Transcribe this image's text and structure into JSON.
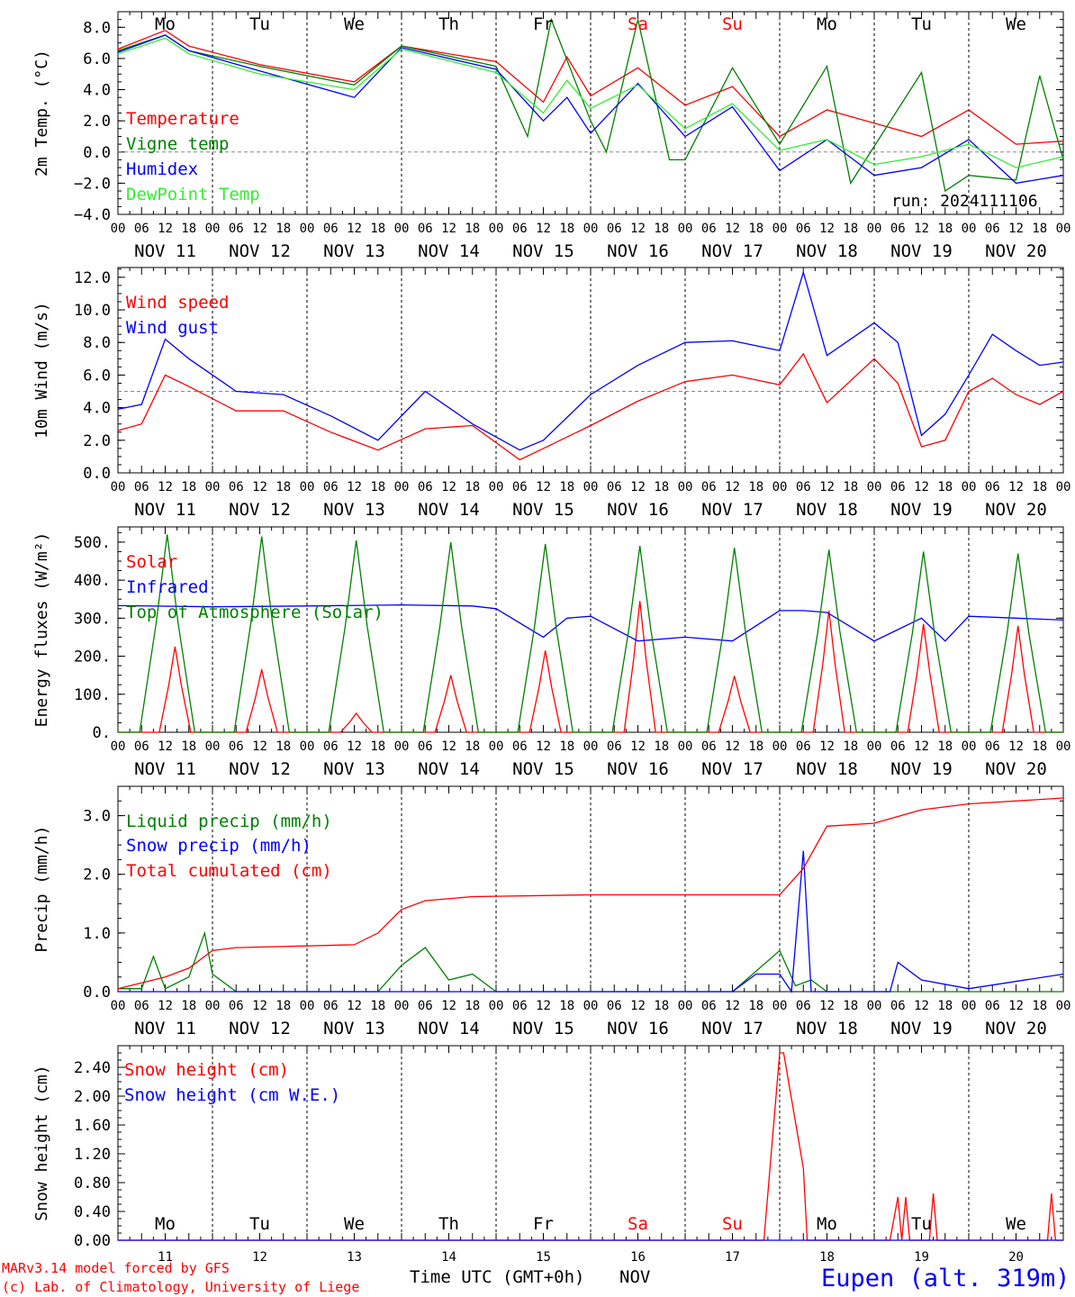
{
  "colors": {
    "red": "#ff0000",
    "green": "#008000",
    "blue": "#0000ff",
    "lightgreen": "#33ee33",
    "axis": "#000000"
  },
  "x_axis": {
    "hour_ticks": [
      "00",
      "06",
      "12",
      "18"
    ],
    "final_tick": "00",
    "date_labels": [
      "NOV 11",
      "NOV 12",
      "NOV 13",
      "NOV 14",
      "NOV 15",
      "NOV 16",
      "NOV 17",
      "NOV 18",
      "NOV 19",
      "NOV 20"
    ],
    "weekdays": [
      "Mo",
      "Tu",
      "We",
      "Th",
      "Fr",
      "Sa",
      "Su",
      "Mo",
      "Tu",
      "We"
    ],
    "weekend_flags": [
      false,
      false,
      false,
      false,
      false,
      true,
      true,
      false,
      false,
      false
    ],
    "day_numbers": [
      "11",
      "12",
      "13",
      "14",
      "15",
      "16",
      "17",
      "18",
      "19",
      "20"
    ],
    "xlabel": "Time UTC (GMT+0h)",
    "month": "NOV"
  },
  "footer": {
    "model_line": "MARv3.14 model forced by GFS",
    "copyright_line": "(c) Lab. of Climatology, University of Liege",
    "station": "Eupen (alt. 319m)"
  },
  "chart_data": [
    {
      "id": "temp",
      "type": "line",
      "ylabel": "2m Temp. (°C)",
      "ylim": [
        -4,
        9
      ],
      "yticks": [
        "8.0",
        "6.0",
        "4.0",
        "2.0",
        "0.0",
        "−2.0",
        "−4.0"
      ],
      "ytick_values": [
        8,
        6,
        4,
        2,
        0,
        -2,
        -4
      ],
      "reference_line": 0,
      "run_label": "run: 2024111106",
      "series": [
        {
          "name": "Temperature",
          "color": "red",
          "x": [
            0,
            12,
            18,
            36,
            60,
            72,
            96,
            108,
            114,
            120,
            132,
            144,
            156,
            168,
            180,
            204,
            216,
            228,
            240
          ],
          "y": [
            6.6,
            7.8,
            6.8,
            5.6,
            4.5,
            6.8,
            5.8,
            3.2,
            6.1,
            3.6,
            5.4,
            3.0,
            4.2,
            1.0,
            2.7,
            1.0,
            2.7,
            0.5,
            0.7
          ]
        },
        {
          "name": "Vigne temp",
          "color": "green",
          "x": [
            0,
            12,
            18,
            36,
            60,
            72,
            96,
            104,
            110,
            120,
            124,
            132,
            140,
            144,
            156,
            168,
            180,
            186,
            204,
            210,
            216,
            228,
            234,
            240
          ],
          "y": [
            6.5,
            7.5,
            6.5,
            5.5,
            4.3,
            6.8,
            5.5,
            1.0,
            8.5,
            2.0,
            0.0,
            8.5,
            -0.5,
            -0.5,
            5.4,
            0.5,
            5.5,
            -2.0,
            5.1,
            -2.5,
            -1.5,
            -1.8,
            4.9,
            -0.5
          ]
        },
        {
          "name": "Humidex",
          "color": "blue",
          "x": [
            0,
            12,
            18,
            36,
            60,
            72,
            96,
            108,
            114,
            120,
            132,
            144,
            156,
            168,
            180,
            192,
            204,
            216,
            228,
            240
          ],
          "y": [
            6.4,
            7.5,
            6.5,
            5.2,
            3.5,
            6.7,
            5.3,
            2.0,
            3.5,
            1.2,
            4.4,
            1.0,
            2.9,
            -1.2,
            0.8,
            -1.5,
            -1.0,
            0.8,
            -2.0,
            -1.5
          ]
        },
        {
          "name": "DewPoint Temp",
          "color": "lightgreen",
          "x": [
            0,
            12,
            18,
            36,
            60,
            72,
            96,
            108,
            114,
            120,
            132,
            144,
            156,
            168,
            180,
            192,
            204,
            216,
            228,
            240
          ],
          "y": [
            6.3,
            7.3,
            6.3,
            5.0,
            4.0,
            6.6,
            5.1,
            2.5,
            4.6,
            2.8,
            4.3,
            1.5,
            3.1,
            0.1,
            0.8,
            -0.8,
            -0.3,
            0.5,
            -1.0,
            -0.3
          ]
        }
      ]
    },
    {
      "id": "wind",
      "type": "line",
      "ylabel": "10m Wind (m/s)",
      "ylim": [
        0,
        12.6
      ],
      "yticks": [
        "12.0",
        "10.0",
        "8.0",
        "6.0",
        "4.0",
        "2.0",
        "0.0"
      ],
      "ytick_values": [
        12,
        10,
        8,
        6,
        4,
        2,
        0
      ],
      "reference_line": 5,
      "series": [
        {
          "name": "Wind speed",
          "color": "red",
          "x": [
            0,
            6,
            12,
            18,
            30,
            42,
            54,
            66,
            78,
            90,
            102,
            108,
            120,
            132,
            144,
            156,
            168,
            174,
            180,
            192,
            198,
            204,
            210,
            216,
            222,
            228,
            234,
            240
          ],
          "y": [
            2.6,
            3.0,
            6.0,
            5.3,
            3.8,
            3.8,
            2.5,
            1.4,
            2.7,
            2.9,
            0.8,
            1.5,
            2.9,
            4.4,
            5.6,
            6.0,
            5.4,
            7.3,
            4.3,
            7.0,
            5.5,
            1.6,
            2.0,
            5.0,
            5.8,
            4.8,
            4.2,
            5.0
          ]
        },
        {
          "name": "Wind gust",
          "color": "blue",
          "x": [
            0,
            6,
            12,
            18,
            30,
            42,
            54,
            66,
            78,
            90,
            102,
            108,
            120,
            132,
            144,
            156,
            168,
            174,
            180,
            192,
            198,
            204,
            210,
            216,
            222,
            228,
            234,
            240
          ],
          "y": [
            3.9,
            4.2,
            8.2,
            7.0,
            5.0,
            4.8,
            3.5,
            2.0,
            5.0,
            3.0,
            1.4,
            2.0,
            4.8,
            6.6,
            8.0,
            8.1,
            7.5,
            12.3,
            7.2,
            9.2,
            8.0,
            2.3,
            3.6,
            6.0,
            8.5,
            7.5,
            6.6,
            6.8
          ]
        }
      ]
    },
    {
      "id": "energy",
      "type": "line",
      "ylabel": "Energy fluxes (W/m²)",
      "ylim": [
        0,
        540
      ],
      "yticks": [
        "500.",
        "400.",
        "300.",
        "200.",
        "100.",
        "0."
      ],
      "ytick_values": [
        500,
        400,
        300,
        200,
        100,
        0
      ],
      "series": [
        {
          "name": "Solar",
          "color": "red",
          "peaks": [
            [
              14.5,
              225
            ],
            [
              36.5,
              165
            ],
            [
              60.5,
              50
            ],
            [
              84.5,
              150
            ],
            [
              108.5,
              215
            ],
            [
              132.5,
              345
            ],
            [
              156.5,
              148
            ],
            [
              180.5,
              320
            ],
            [
              204.5,
              285
            ],
            [
              228.5,
              280
            ]
          ]
        },
        {
          "name": "Infrared",
          "color": "blue",
          "x": [
            0,
            24,
            48,
            72,
            90,
            96,
            108,
            114,
            120,
            132,
            144,
            156,
            168,
            174,
            180,
            192,
            198,
            204,
            210,
            216,
            228,
            240
          ],
          "y": [
            333,
            330,
            332,
            335,
            332,
            325,
            250,
            300,
            305,
            240,
            250,
            240,
            320,
            320,
            315,
            240,
            270,
            300,
            240,
            305,
            300,
            295
          ]
        },
        {
          "name": "Top of Atmosphere (Solar)",
          "color": "green",
          "peaks": [
            [
              12.5,
              520
            ],
            [
              36.5,
              515
            ],
            [
              60.5,
              505
            ],
            [
              84.5,
              500
            ],
            [
              108.5,
              495
            ],
            [
              132.5,
              490
            ],
            [
              156.5,
              485
            ],
            [
              180.5,
              480
            ],
            [
              204.5,
              475
            ],
            [
              228.5,
              470
            ]
          ]
        }
      ]
    },
    {
      "id": "precip",
      "type": "line",
      "ylabel": "Precip (mm/h)",
      "ylim": [
        0,
        3.5
      ],
      "yticks": [
        "3.0",
        "2.0",
        "1.0",
        "0.0"
      ],
      "ytick_values": [
        3,
        2,
        1,
        0
      ],
      "series": [
        {
          "name": "Liquid precip (mm/h)",
          "color": "green",
          "x": [
            0,
            6,
            9,
            12,
            18,
            22,
            24,
            30,
            66,
            72,
            78,
            84,
            90,
            96,
            156,
            162,
            168,
            172,
            176,
            180,
            240
          ],
          "y": [
            0.05,
            0.05,
            0.6,
            0.05,
            0.25,
            1.0,
            0.3,
            0.0,
            0.0,
            0.45,
            0.75,
            0.2,
            0.3,
            0.0,
            0.0,
            0.35,
            0.7,
            0.1,
            0.2,
            0.0,
            0.0
          ]
        },
        {
          "name": "Snow precip (mm/h)",
          "color": "blue",
          "x": [
            0,
            156,
            162,
            168,
            171,
            174,
            176,
            180,
            196,
            198,
            204,
            216,
            240
          ],
          "y": [
            0,
            0,
            0.3,
            0.3,
            0.0,
            2.4,
            0.0,
            0.0,
            0.0,
            0.5,
            0.2,
            0.05,
            0.3
          ]
        },
        {
          "name": "Total cumulated (cm)",
          "color": "red",
          "x": [
            0,
            12,
            18,
            24,
            30,
            60,
            66,
            72,
            78,
            90,
            120,
            168,
            174,
            180,
            192,
            204,
            216,
            240
          ],
          "y": [
            0.05,
            0.25,
            0.4,
            0.7,
            0.75,
            0.8,
            1.0,
            1.4,
            1.55,
            1.62,
            1.65,
            1.65,
            2.1,
            2.82,
            2.87,
            3.1,
            3.2,
            3.3
          ]
        }
      ]
    },
    {
      "id": "snow",
      "type": "line",
      "ylabel": "Snow height (cm)",
      "ylim": [
        0,
        2.7
      ],
      "yticks": [
        "2.40",
        "2.00",
        "1.60",
        "1.20",
        "0.80",
        "0.40",
        "0.00"
      ],
      "ytick_values": [
        2.4,
        2.0,
        1.6,
        1.2,
        0.8,
        0.4,
        0.0
      ],
      "series": [
        {
          "name": "Snow height (cm)",
          "color": "red",
          "x": [
            0,
            162,
            164,
            168,
            169,
            174,
            175,
            176,
            196,
            198,
            199,
            200,
            201,
            202,
            206,
            207,
            208,
            235,
            236,
            237,
            238,
            238.5,
            239,
            240
          ],
          "y": [
            0,
            0,
            0,
            2.6,
            2.6,
            1.0,
            0,
            0,
            0,
            0.6,
            0,
            0.6,
            0,
            0,
            0,
            0.65,
            0,
            0,
            0,
            0.65,
            0,
            0,
            0,
            0
          ]
        },
        {
          "name": "Snow height (cm W.E.)",
          "color": "blue",
          "x": [
            0,
            240
          ],
          "y": [
            0,
            0
          ]
        }
      ]
    }
  ]
}
